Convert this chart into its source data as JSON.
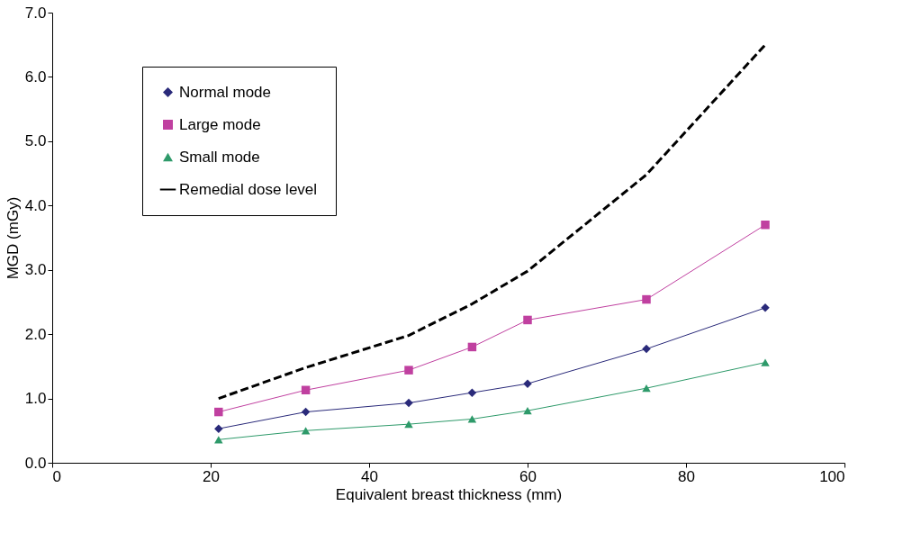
{
  "chart_data": {
    "type": "line",
    "xlabel": "Equivalent breast thickness (mm)",
    "ylabel": "MGD (mGy)",
    "x": [
      21,
      32,
      45,
      53,
      60,
      75,
      90
    ],
    "xlim": [
      0,
      100
    ],
    "xticks": [
      0,
      20,
      40,
      60,
      80,
      100
    ],
    "ylim": [
      0,
      7
    ],
    "yticks": [
      {
        "value": 0,
        "label": "0.0"
      },
      {
        "value": 1,
        "label": "1.0"
      },
      {
        "value": 2,
        "label": "2.0"
      },
      {
        "value": 3,
        "label": "3.0"
      },
      {
        "value": 4,
        "label": "4.0"
      },
      {
        "value": 5,
        "label": "5.0"
      },
      {
        "value": 6,
        "label": "6.0"
      },
      {
        "value": 7,
        "label": "7.0"
      }
    ],
    "grid": false,
    "legend": "top left",
    "series": [
      {
        "name": "Normal mode",
        "color": "#2a2a7a",
        "marker": "diamond",
        "line_style": "solid",
        "values": [
          0.53,
          0.79,
          0.93,
          1.09,
          1.23,
          1.77,
          2.41
        ]
      },
      {
        "name": "Large mode",
        "color": "#c040a0",
        "marker": "square",
        "line_style": "solid",
        "values": [
          0.79,
          1.13,
          1.44,
          1.8,
          2.22,
          2.54,
          3.7
        ]
      },
      {
        "name": "Small mode",
        "color": "#2e9a6a",
        "marker": "triangle",
        "line_style": "solid",
        "values": [
          0.36,
          0.5,
          0.6,
          0.68,
          0.81,
          1.16,
          1.56
        ]
      },
      {
        "name": "Remedial dose level",
        "color": "#000000",
        "marker": "none",
        "line_style": "dashed",
        "values": [
          1.0,
          1.48,
          1.98,
          2.47,
          2.98,
          4.48,
          6.5
        ]
      }
    ]
  }
}
